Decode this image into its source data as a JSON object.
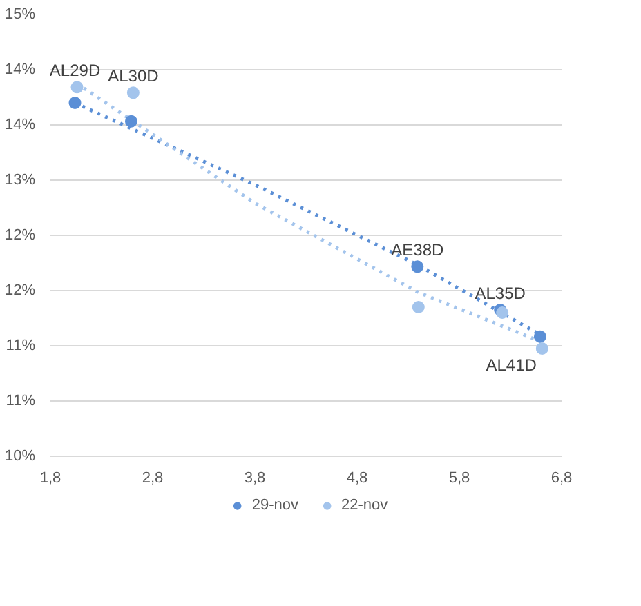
{
  "chart_data": {
    "type": "scatter",
    "xlim": [
      1.8,
      6.8
    ],
    "xticks": [
      {
        "value": 1.8,
        "label": "1,8"
      },
      {
        "value": 2.8,
        "label": "2,8"
      },
      {
        "value": 3.8,
        "label": "3,8"
      },
      {
        "value": 4.8,
        "label": "4,8"
      },
      {
        "value": 5.8,
        "label": "5,8"
      },
      {
        "value": 6.8,
        "label": "6,8"
      }
    ],
    "ylim": [
      10,
      14.8
    ],
    "yticks": [
      {
        "value": 10,
        "label": "10%"
      },
      {
        "value": 10.6,
        "label": "11%"
      },
      {
        "value": 11.2,
        "label": "11%"
      },
      {
        "value": 11.8,
        "label": "12%"
      },
      {
        "value": 12.4,
        "label": "12%"
      },
      {
        "value": 13.0,
        "label": "13%"
      },
      {
        "value": 13.6,
        "label": "14%"
      },
      {
        "value": 14.2,
        "label": "14%"
      },
      {
        "value": 14.8,
        "label": "15%"
      }
    ],
    "grid": "y",
    "legend": "bottom",
    "marker": "circle",
    "series": [
      {
        "name": "29-nov",
        "color": "#5b8fd6",
        "x": [
          2.04,
          2.59,
          5.39,
          6.2,
          6.59
        ],
        "values": [
          13.84,
          13.64,
          12.06,
          11.59,
          11.3
        ]
      },
      {
        "name": "22-nov",
        "color": "#a3c4ec",
        "x": [
          2.06,
          2.61,
          5.4,
          6.22,
          6.61
        ],
        "values": [
          14.01,
          13.95,
          11.62,
          11.56,
          11.17
        ]
      },
      {
        "type": "line",
        "marker": "none",
        "line_style": "dotted",
        "color": "#5b8fd6",
        "x": [
          2.04,
          3.8,
          5.39,
          6.59
        ],
        "values": [
          13.84,
          12.95,
          12.08,
          11.32
        ]
      },
      {
        "type": "line",
        "marker": "none",
        "line_style": "dotted",
        "color": "#a3c4ec",
        "x": [
          2.06,
          3.8,
          5.4,
          6.61
        ],
        "values": [
          14.05,
          12.75,
          11.78,
          11.24
        ]
      }
    ],
    "annotations": [
      {
        "text": "AL29D",
        "x": 2.04,
        "y": 14.01
      },
      {
        "text": "AL30D",
        "x": 2.61,
        "y": 13.95
      },
      {
        "text": "AE38D",
        "x": 5.39,
        "y": 12.06
      },
      {
        "text": "AL35D",
        "x": 6.2,
        "y": 11.59
      },
      {
        "text": "AL41D",
        "x": 6.61,
        "y": 11.17
      }
    ]
  }
}
